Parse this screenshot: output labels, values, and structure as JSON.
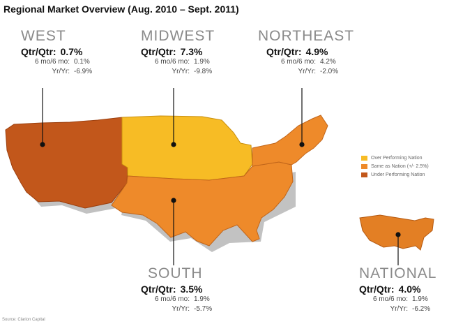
{
  "title": "Regional Market Overview (Aug. 2010 – Sept. 2011)",
  "labels": {
    "qtr": "Qtr/Qtr:",
    "six": "6 mo/6 mo:",
    "yr": "Yr/Yr:"
  },
  "regions": {
    "west": {
      "name": "WEST",
      "qtr": "0.7%",
      "six": "0.1%",
      "yr": "-6.9%",
      "color": "#c2571b"
    },
    "midwest": {
      "name": "MIDWEST",
      "qtr": "7.3%",
      "six": "1.9%",
      "yr": "-9.8%",
      "color": "#f7bc25"
    },
    "northeast": {
      "name": "NORTHEAST",
      "qtr": "4.9%",
      "six": "4.2%",
      "yr": "-2.0%",
      "color": "#ee8a2a"
    },
    "south": {
      "name": "SOUTH",
      "qtr": "3.5%",
      "six": "1.9%",
      "yr": "-5.7%",
      "color": "#ee8a2a"
    },
    "national": {
      "name": "NATIONAL",
      "qtr": "4.0%",
      "six": "1.9%",
      "yr": "-6.2%",
      "color": "#e37f24"
    }
  },
  "legend": [
    {
      "label": "Over Performing Nation",
      "color": "#f7bc25"
    },
    {
      "label": "Same as Nation (+/- 2.5%)",
      "color": "#ee8a2a"
    },
    {
      "label": "Under Performing Nation",
      "color": "#c2571b"
    }
  ],
  "source": "Source: Clarion Capital"
}
